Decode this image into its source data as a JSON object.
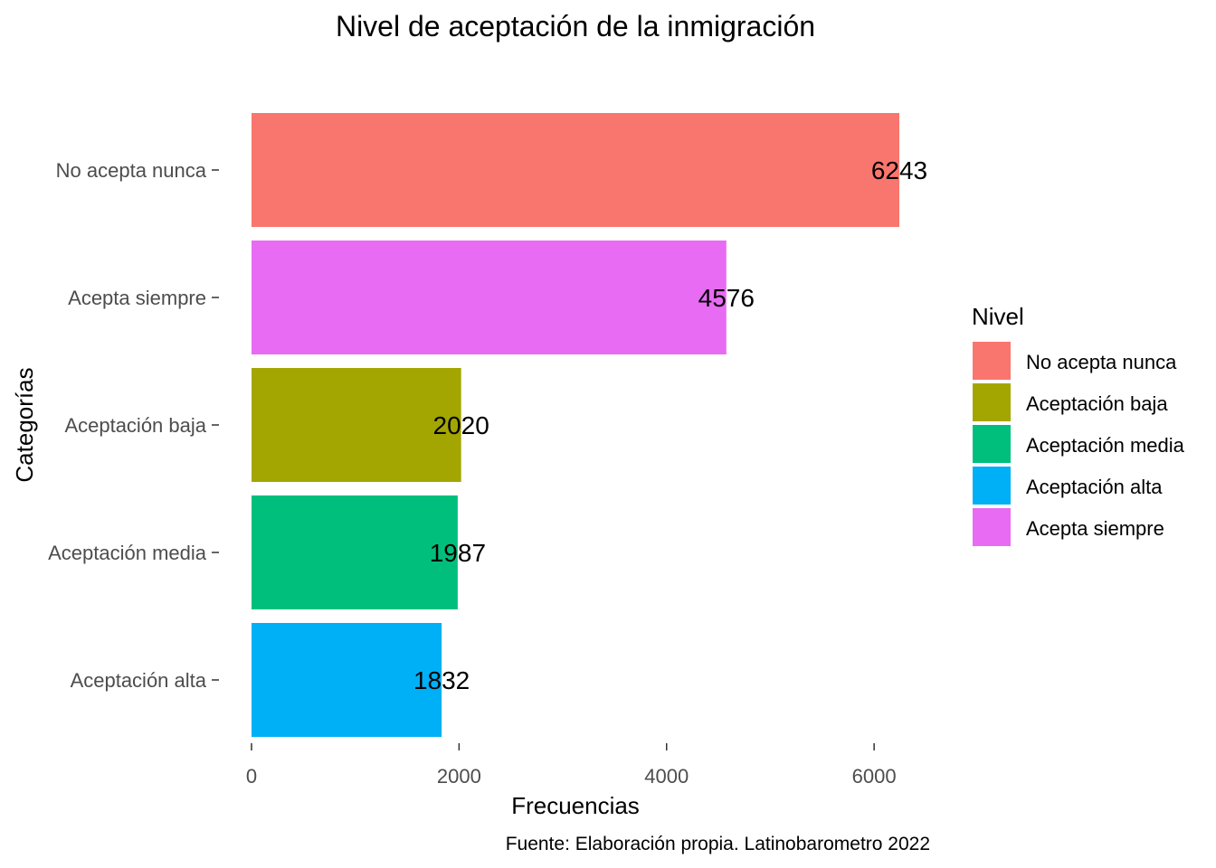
{
  "chart_data": {
    "type": "bar",
    "orientation": "horizontal",
    "title": "Nivel de aceptación de la inmigración",
    "xlabel": "Frecuencias",
    "ylabel": "Categorías",
    "caption": "Fuente: Elaboración propia. Latinobarometro 2022",
    "categories": [
      "No acepta nunca",
      "Acepta siempre",
      "Aceptación baja",
      "Aceptación media",
      "Aceptación alta"
    ],
    "values": [
      6243,
      4576,
      2020,
      1987,
      1832
    ],
    "colors": [
      "#F8766D",
      "#E76BF3",
      "#A3A500",
      "#00BF7D",
      "#00B0F6"
    ],
    "xlim": [
      0,
      6243
    ],
    "xticks": [
      0,
      2000,
      4000,
      6000
    ],
    "grid": false,
    "legend": {
      "title": "Nivel",
      "position": "right",
      "items": [
        {
          "label": "No acepta nunca",
          "color": "#F8766D"
        },
        {
          "label": "Aceptación baja",
          "color": "#A3A500"
        },
        {
          "label": "Aceptación media",
          "color": "#00BF7D"
        },
        {
          "label": "Aceptación alta",
          "color": "#00B0F6"
        },
        {
          "label": "Acepta siempre",
          "color": "#E76BF3"
        }
      ]
    }
  }
}
